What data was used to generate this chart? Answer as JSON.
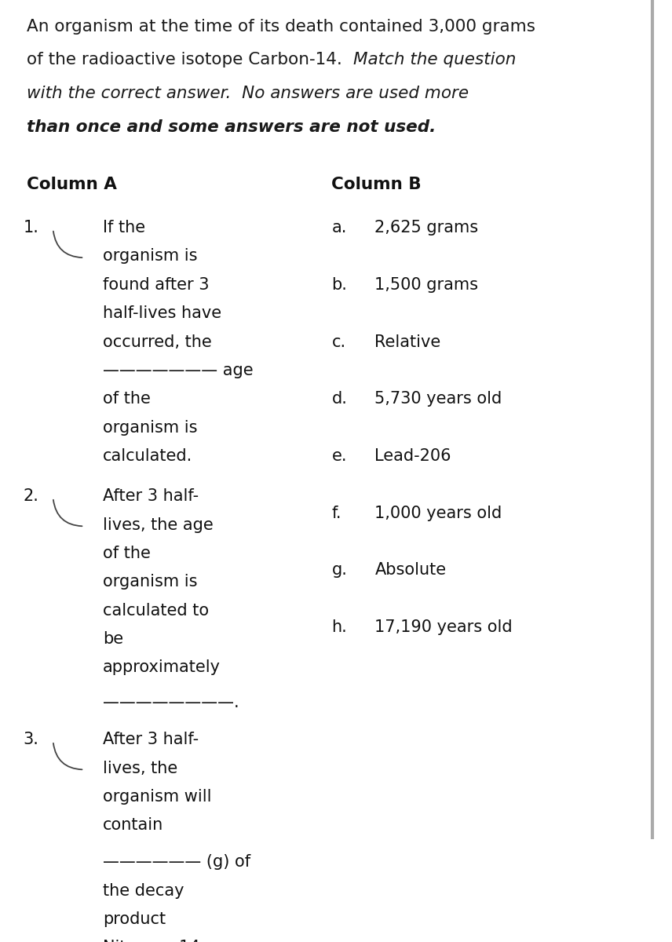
{
  "background_color": "#ffffff",
  "page_width": 8.56,
  "page_height": 12.0,
  "intro_line1_normal": "An organism at the time of its death contained 3,000 grams",
  "intro_line2_normal": "of the radioactive isotope Carbon-14.  ",
  "intro_line2_italic": "Match the question",
  "intro_line3_italic": "with the correct answer.  No answers are used more",
  "intro_line4_italic_bold": "than once and some answers are not used.",
  "col_a_header": "Column A",
  "col_b_header": "Column B",
  "items_col_b": [
    {
      "letter": "a.",
      "text": "2,625 grams"
    },
    {
      "letter": "b.",
      "text": "1,500 grams"
    },
    {
      "letter": "c.",
      "text": "Relative"
    },
    {
      "letter": "d.",
      "text": "5,730 years old"
    },
    {
      "letter": "e.",
      "text": "Lead-206"
    },
    {
      "letter": "f.",
      "text": "1,000 years old"
    },
    {
      "letter": "g.",
      "text": "Absolute"
    },
    {
      "letter": "h.",
      "text": "17,190 years old"
    }
  ],
  "font_size_intro": 15.5,
  "font_size_header": 15.5,
  "font_size_body": 15.0,
  "right_bar_color": "#aaaaaa"
}
